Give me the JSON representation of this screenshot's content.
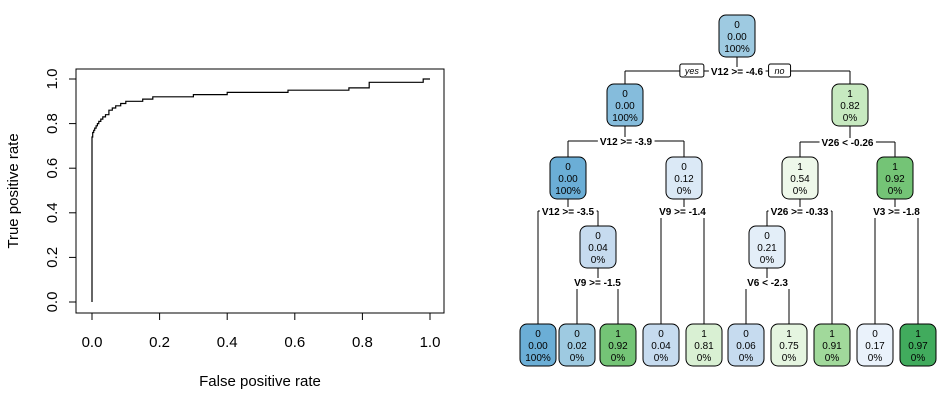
{
  "chart_data": [
    {
      "type": "line",
      "xlabel": "False positive rate",
      "ylabel": "True positive rate",
      "xlim": [
        0,
        1
      ],
      "ylim": [
        0,
        1
      ],
      "x_ticks": [
        "0.0",
        "0.2",
        "0.4",
        "0.6",
        "0.8",
        "1.0"
      ],
      "y_ticks": [
        "0.0",
        "0.2",
        "0.4",
        "0.6",
        "0.8",
        "1.0"
      ],
      "grid": false,
      "series": [
        {
          "x": [
            0,
            0,
            0.002,
            0.002,
            0.005,
            0.005,
            0.008,
            0.008,
            0.012,
            0.012,
            0.016,
            0.016,
            0.02,
            0.02,
            0.026,
            0.026,
            0.032,
            0.032,
            0.04,
            0.04,
            0.05,
            0.05,
            0.06,
            0.06,
            0.07,
            0.07,
            0.085,
            0.085,
            0.1,
            0.1,
            0.15,
            0.15,
            0.18,
            0.18,
            0.3,
            0.3,
            0.4,
            0.4,
            0.58,
            0.58,
            0.76,
            0.76,
            0.82,
            0.82,
            0.98,
            0.98,
            1.0
          ],
          "y": [
            0,
            0.74,
            0.74,
            0.76,
            0.76,
            0.77,
            0.77,
            0.78,
            0.78,
            0.79,
            0.79,
            0.8,
            0.8,
            0.81,
            0.81,
            0.82,
            0.82,
            0.83,
            0.83,
            0.84,
            0.84,
            0.86,
            0.86,
            0.87,
            0.87,
            0.88,
            0.88,
            0.89,
            0.89,
            0.9,
            0.9,
            0.91,
            0.91,
            0.92,
            0.92,
            0.93,
            0.93,
            0.94,
            0.94,
            0.95,
            0.95,
            0.96,
            0.96,
            0.985,
            0.985,
            1.0,
            1.0
          ]
        }
      ]
    },
    {
      "type": "tree",
      "nodes": [
        {
          "id": "n1",
          "cls": "0",
          "prob": "0.00",
          "pct": "100%",
          "fill": "#9ecae1"
        },
        {
          "id": "n2",
          "cls": "0",
          "prob": "0.00",
          "pct": "100%",
          "fill": "#85bcdc"
        },
        {
          "id": "n3",
          "cls": "1",
          "prob": "0.82",
          "pct": "0%",
          "fill": "#c7e9c0"
        },
        {
          "id": "n4",
          "cls": "0",
          "prob": "0.00",
          "pct": "100%",
          "fill": "#6baed6"
        },
        {
          "id": "n5",
          "cls": "0",
          "prob": "0.12",
          "pct": "0%",
          "fill": "#dbe9f6"
        },
        {
          "id": "n6",
          "cls": "1",
          "prob": "0.54",
          "pct": "0%",
          "fill": "#eef8ea"
        },
        {
          "id": "n7",
          "cls": "1",
          "prob": "0.92",
          "pct": "0%",
          "fill": "#74c476"
        },
        {
          "id": "n8",
          "cls": "0",
          "prob": "0.04",
          "pct": "0%",
          "fill": "#c6dbef"
        },
        {
          "id": "n9",
          "cls": "0",
          "prob": "0.21",
          "pct": "0%",
          "fill": "#e3eef8"
        },
        {
          "id": "l1",
          "cls": "0",
          "prob": "0.00",
          "pct": "100%",
          "fill": "#6baed6"
        },
        {
          "id": "l2",
          "cls": "0",
          "prob": "0.02",
          "pct": "0%",
          "fill": "#9ecae1"
        },
        {
          "id": "l3",
          "cls": "1",
          "prob": "0.92",
          "pct": "0%",
          "fill": "#74c476"
        },
        {
          "id": "l4",
          "cls": "0",
          "prob": "0.04",
          "pct": "0%",
          "fill": "#c6dbef"
        },
        {
          "id": "l5",
          "cls": "1",
          "prob": "0.81",
          "pct": "0%",
          "fill": "#d9f0d3"
        },
        {
          "id": "l6",
          "cls": "0",
          "prob": "0.06",
          "pct": "0%",
          "fill": "#c6dbef"
        },
        {
          "id": "l7",
          "cls": "1",
          "prob": "0.75",
          "pct": "0%",
          "fill": "#e5f5e0"
        },
        {
          "id": "l8",
          "cls": "1",
          "prob": "0.91",
          "pct": "0%",
          "fill": "#a1d99b"
        },
        {
          "id": "l9",
          "cls": "0",
          "prob": "0.17",
          "pct": "0%",
          "fill": "#eaf2fb"
        },
        {
          "id": "l10",
          "cls": "1",
          "prob": "0.97",
          "pct": "0%",
          "fill": "#41ab5d"
        }
      ],
      "splits": [
        {
          "id": "s1",
          "label": "V12 >= -4.6",
          "yes": "yes",
          "no": "no"
        },
        {
          "id": "s2",
          "label": "V12 >= -3.9"
        },
        {
          "id": "s3",
          "label": "V26 < -0.26"
        },
        {
          "id": "s4",
          "label": "V12 >= -3.5"
        },
        {
          "id": "s5",
          "label": "V9 >= -1.4"
        },
        {
          "id": "s6",
          "label": "V26 >= -0.33"
        },
        {
          "id": "s7",
          "label": "V3 >= -1.8"
        },
        {
          "id": "s8",
          "label": "V9 >= -1.5"
        },
        {
          "id": "s9",
          "label": "V6 < -2.3"
        }
      ]
    }
  ]
}
